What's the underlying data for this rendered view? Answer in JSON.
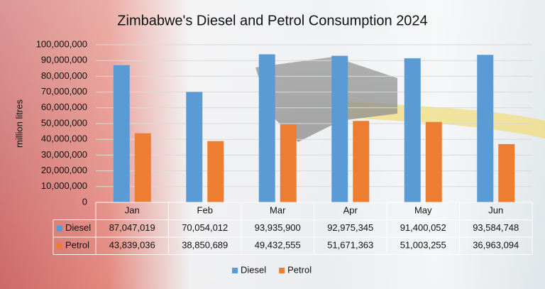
{
  "chart_data": {
    "type": "bar",
    "title": "Zimbabwe's Diesel and Petrol Consumption 2024",
    "y_label": "million litres",
    "categories": [
      "Jan",
      "Feb",
      "Mar",
      "Apr",
      "May",
      "Jun"
    ],
    "series": [
      {
        "name": "Diesel",
        "color": "#5b9bd5",
        "values": [
          87047019,
          70054012,
          93935900,
          92975345,
          91400052,
          93584748
        ],
        "value_labels": [
          "87,047,019",
          "70,054,012",
          "93,935,900",
          "92,975,345",
          "91,400,052",
          "93,584,748"
        ]
      },
      {
        "name": "Petrol",
        "color": "#ed7d31",
        "values": [
          43839036,
          38850689,
          49432555,
          51671363,
          51003255,
          36963094
        ],
        "value_labels": [
          "43,839,036",
          "38,850,689",
          "49,432,555",
          "51,671,363",
          "51,003,255",
          "36,963,094"
        ]
      }
    ],
    "ylim": [
      0,
      100000000
    ],
    "yticks": [
      0,
      {
        "value": 10000000,
        "label": "10,000,000"
      },
      {
        "value": 20000000,
        "label": "20,000,000"
      },
      {
        "value": 30000000,
        "label": "30,000,000"
      },
      {
        "value": 40000000,
        "label": "40,000,000"
      },
      {
        "value": 50000000,
        "label": "50,000,000"
      },
      {
        "value": 60000000,
        "label": "60,000,000"
      },
      {
        "value": 70000000,
        "label": "70,000,000"
      },
      {
        "value": 80000000,
        "label": "80,000,000"
      },
      {
        "value": 90000000,
        "label": "90,000,000"
      },
      {
        "value": 100000000,
        "label": "100,000,000"
      }
    ],
    "grid": true,
    "legend": "bottom",
    "data_table": true
  }
}
